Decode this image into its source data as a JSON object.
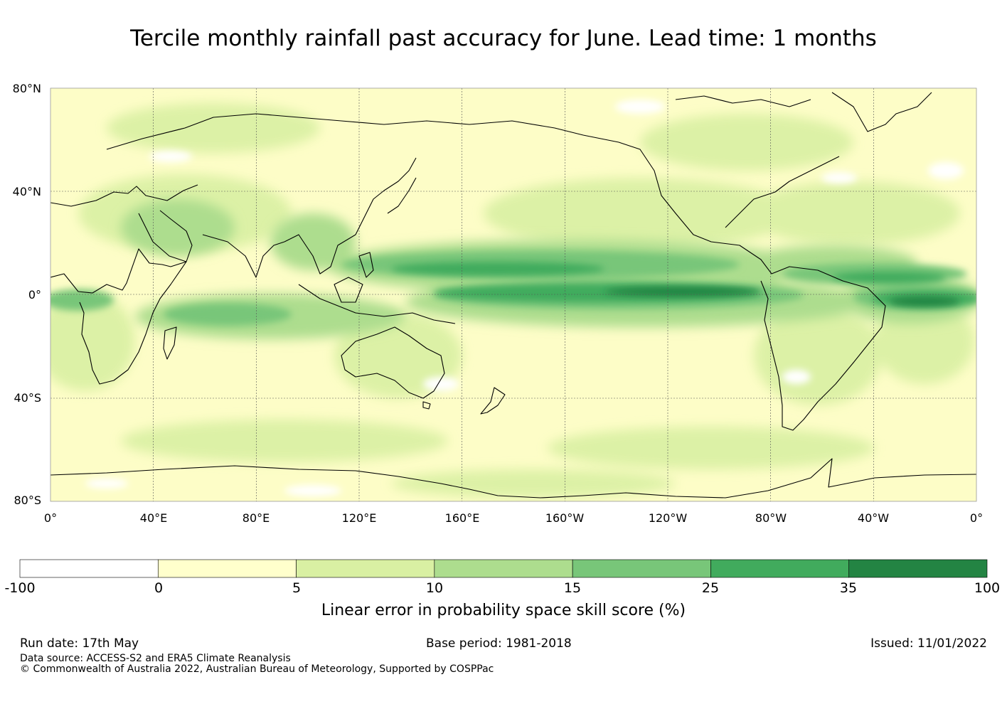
{
  "title": "Tercile monthly rainfall past accuracy for June. Lead time: 1 months",
  "map": {
    "lat_ticks": [
      "80°N",
      "40°N",
      "0°",
      "40°S",
      "80°S"
    ],
    "lon_ticks": [
      "0°",
      "40°E",
      "80°E",
      "120°E",
      "160°E",
      "160°W",
      "120°W",
      "80°W",
      "40°W",
      "0°"
    ],
    "ocean_color": "#fdfdc7",
    "land_outline_color": "#000000"
  },
  "colorbar": {
    "ticks": [
      "-100",
      "0",
      "5",
      "10",
      "15",
      "25",
      "35",
      "100"
    ],
    "colors": [
      "#ffffff",
      "#ffffcc",
      "#d9f0a3",
      "#addd8e",
      "#78c679",
      "#41ab5d",
      "#238443"
    ],
    "title": "Linear error in probability space skill score (%)"
  },
  "footer": {
    "run_date": "Run date: 17th May",
    "base_period": "Base period: 1981-2018",
    "issued": "Issued: 11/01/2022",
    "data_source": "Data source: ACCESS-S2 and ERA5 Climate Reanalysis",
    "copyright": "© Commonwealth of Australia 2022, Australian Bureau of Meteorology, Supported by COSPPac"
  }
}
